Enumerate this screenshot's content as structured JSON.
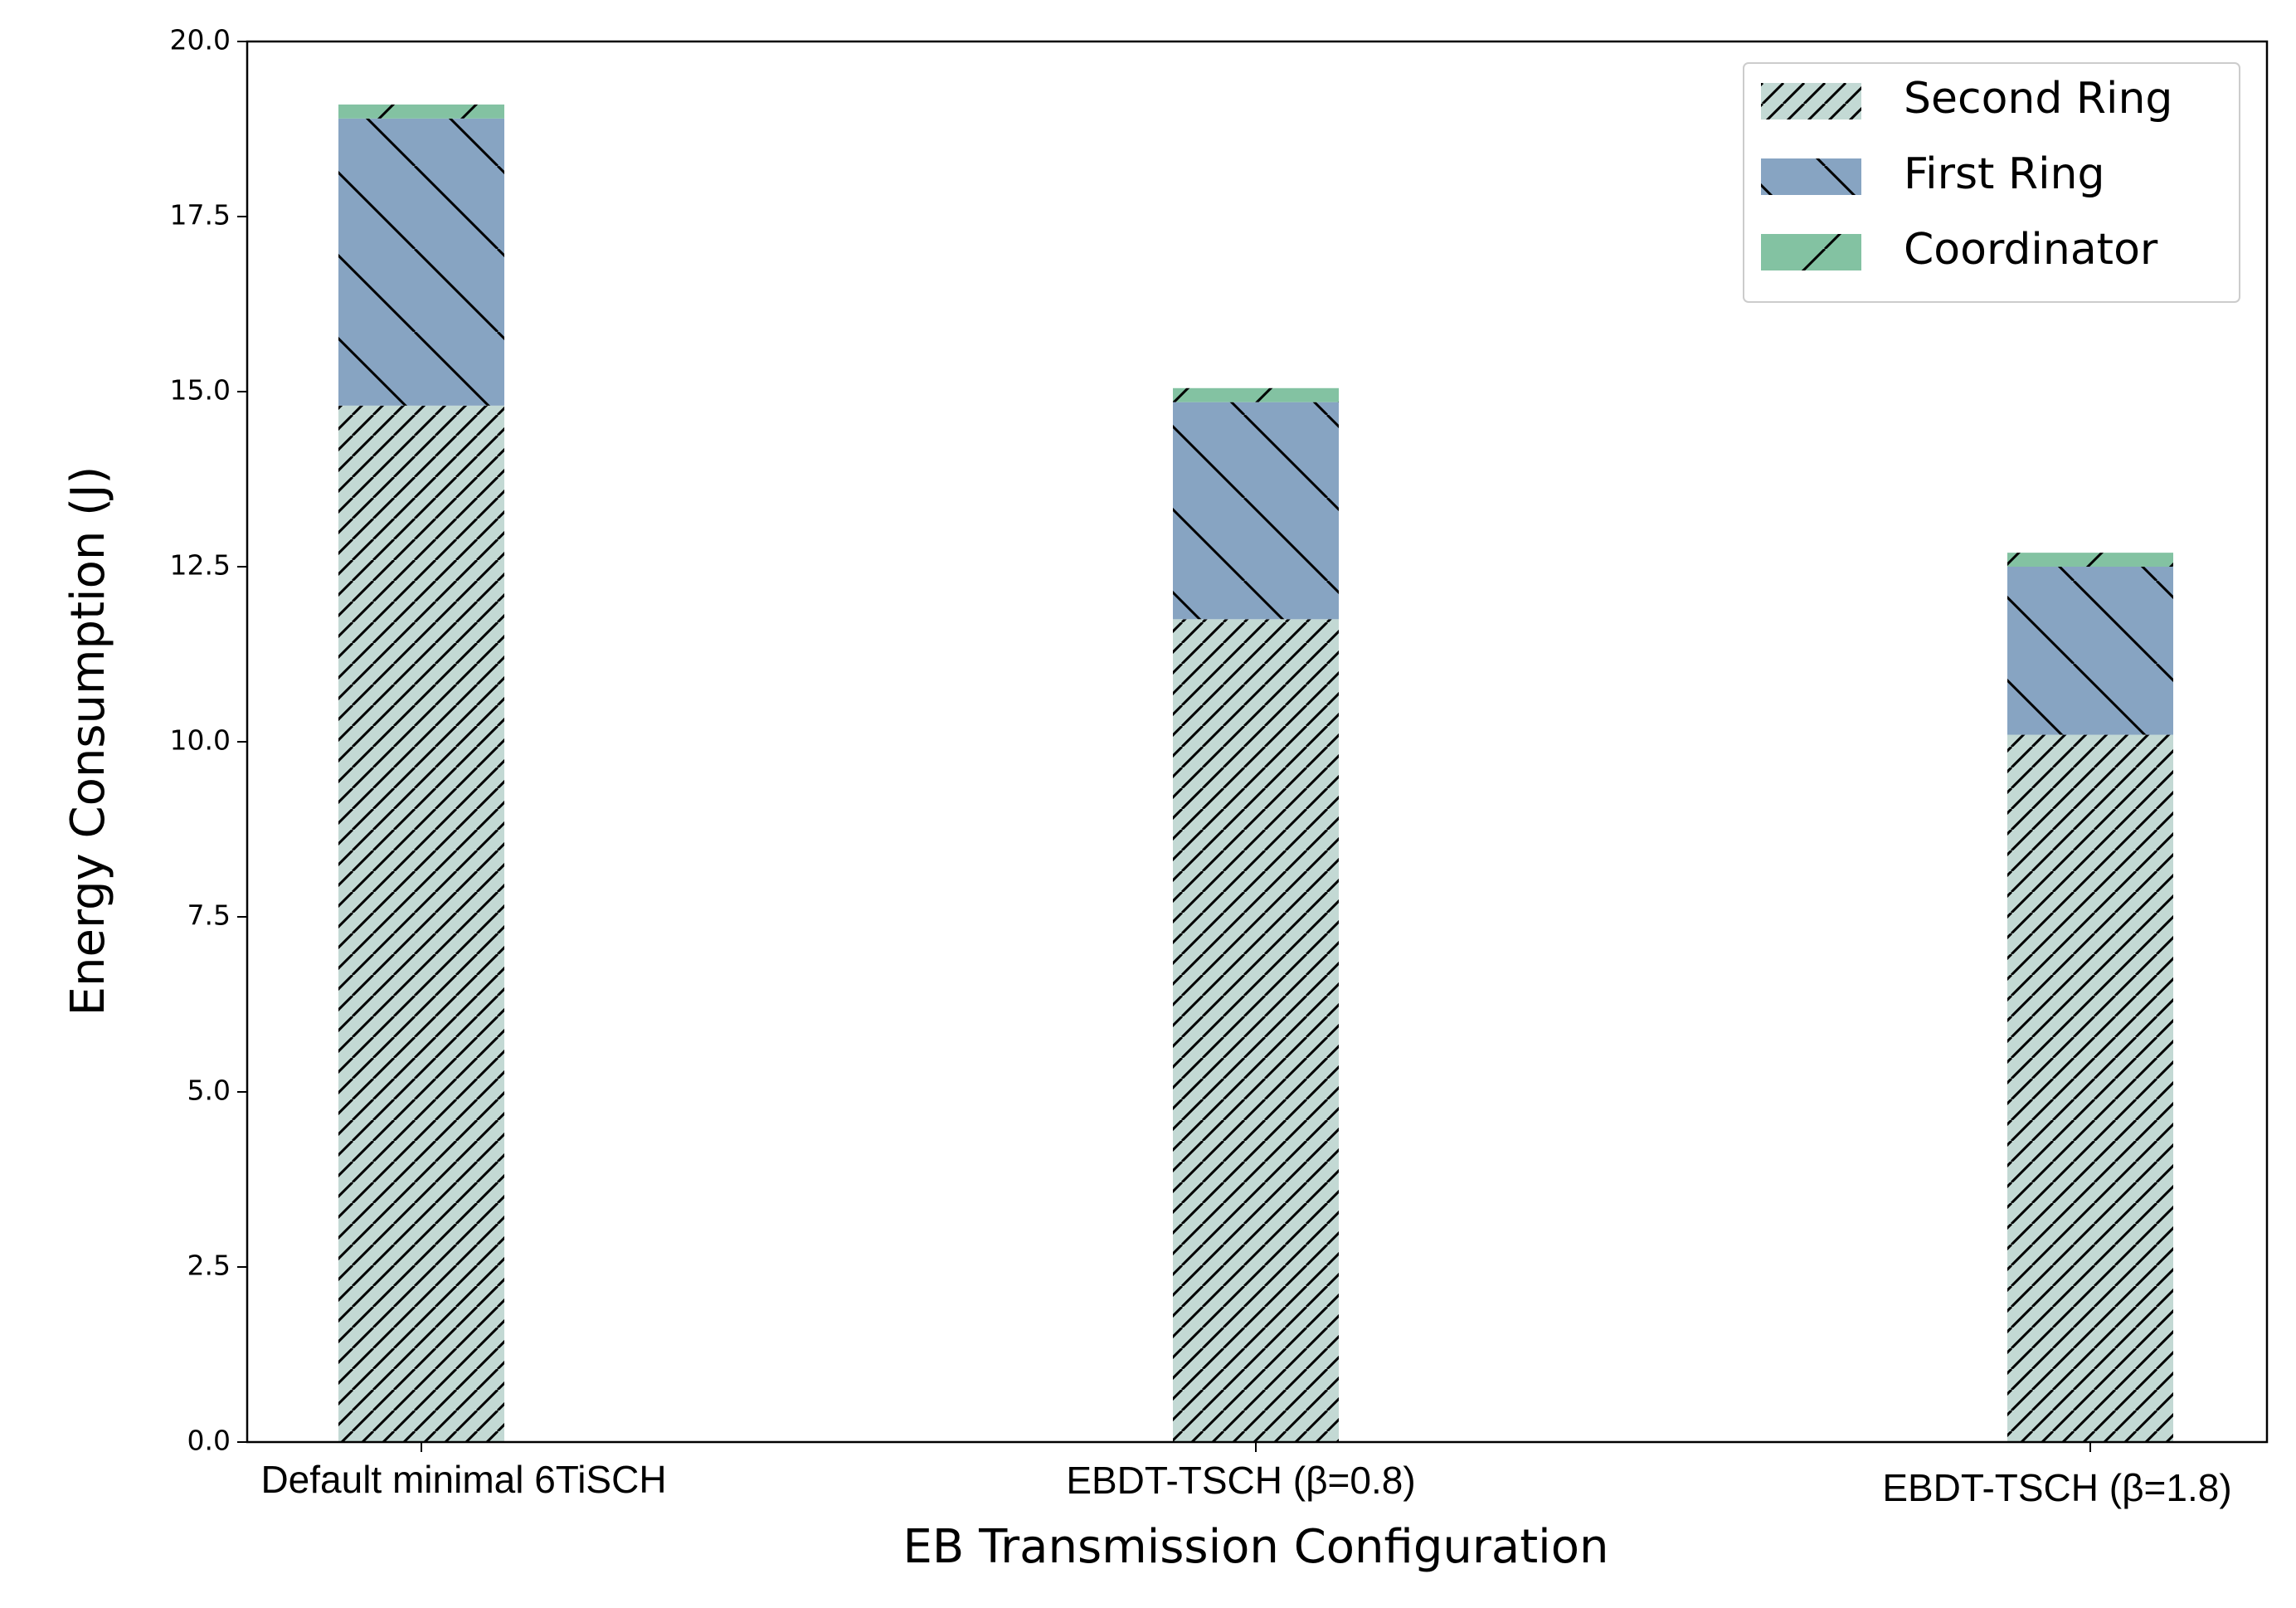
{
  "chart_data": {
    "type": "stacked-bar",
    "x_label": "EB Transmission Configuration",
    "y_label": "Energy Consumption (J)",
    "categories": [
      "Default minimal 6TiSCH",
      "EBDT-TSCH (β=0.8)",
      "EBDT-TSCH (β=1.8)"
    ],
    "series": [
      {
        "name": "Second Ring",
        "color": "#c3d9d4",
        "hatch": "//",
        "values": [
          14.8,
          11.75,
          10.1
        ]
      },
      {
        "name": "First Ring",
        "color": "#87a4c2",
        "hatch": "\\",
        "values": [
          4.1,
          3.1,
          2.4
        ]
      },
      {
        "name": "Coordinator",
        "color": "#83c2a2",
        "hatch": "/",
        "values": [
          0.2,
          0.2,
          0.2
        ]
      }
    ],
    "ylim": [
      0,
      20
    ],
    "yticks": [
      {
        "value": 0,
        "label": "0.0"
      },
      2.5,
      {
        "value": 5,
        "label": "5.0"
      },
      7.5,
      {
        "value": 10,
        "label": "10.0"
      },
      12.5,
      {
        "value": 15,
        "label": "15.0"
      },
      17.5,
      {
        "value": 20,
        "label": "20.0"
      }
    ],
    "legend": "upper right"
  }
}
